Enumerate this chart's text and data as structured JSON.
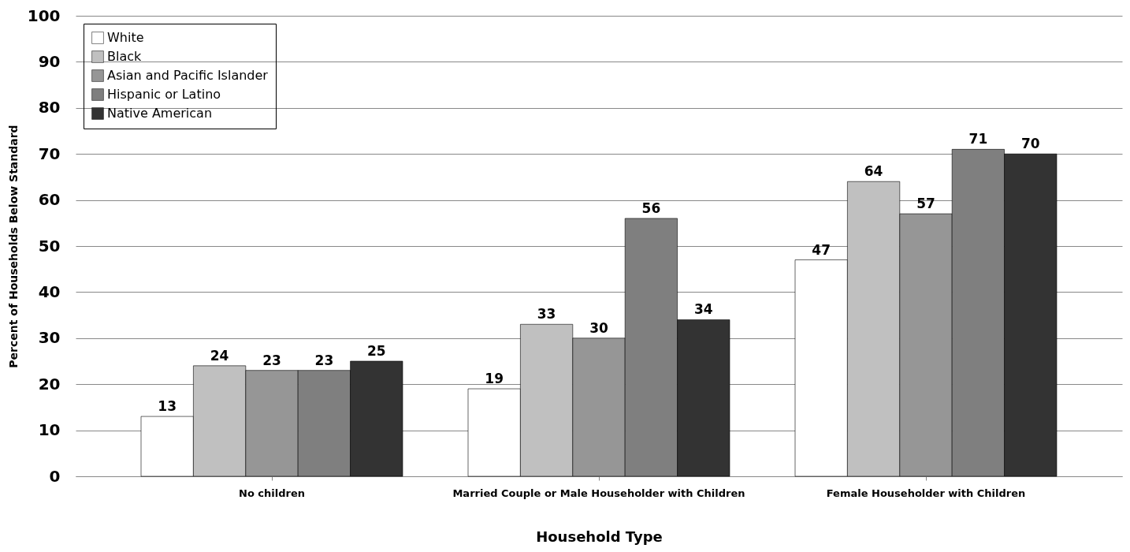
{
  "chart_data": {
    "type": "bar",
    "xlabel": "Household Type",
    "ylabel": "Percent of Households Below Standard",
    "categories": [
      "No children",
      "Married Couple or Male Householder with Children",
      "Female Householder with Children"
    ],
    "series": [
      {
        "name": "White",
        "color": "#ffffff",
        "values": [
          13,
          19,
          47
        ]
      },
      {
        "name": "Black",
        "color": "#c0c0c0",
        "values": [
          24,
          33,
          64
        ]
      },
      {
        "name": "Asian and Pacific Islander",
        "color": "#969696",
        "values": [
          23,
          30,
          57
        ]
      },
      {
        "name": "Hispanic or Latino",
        "color": "#7f7f7f",
        "values": [
          23,
          56,
          71
        ]
      },
      {
        "name": "Native American",
        "color": "#333333",
        "values": [
          25,
          34,
          70
        ]
      }
    ],
    "ylim": [
      0,
      100
    ],
    "yticks": [
      0,
      10,
      20,
      30,
      40,
      50,
      60,
      70,
      80,
      90,
      100
    ],
    "grid": "y",
    "legend": "top left",
    "data_labels": true
  }
}
